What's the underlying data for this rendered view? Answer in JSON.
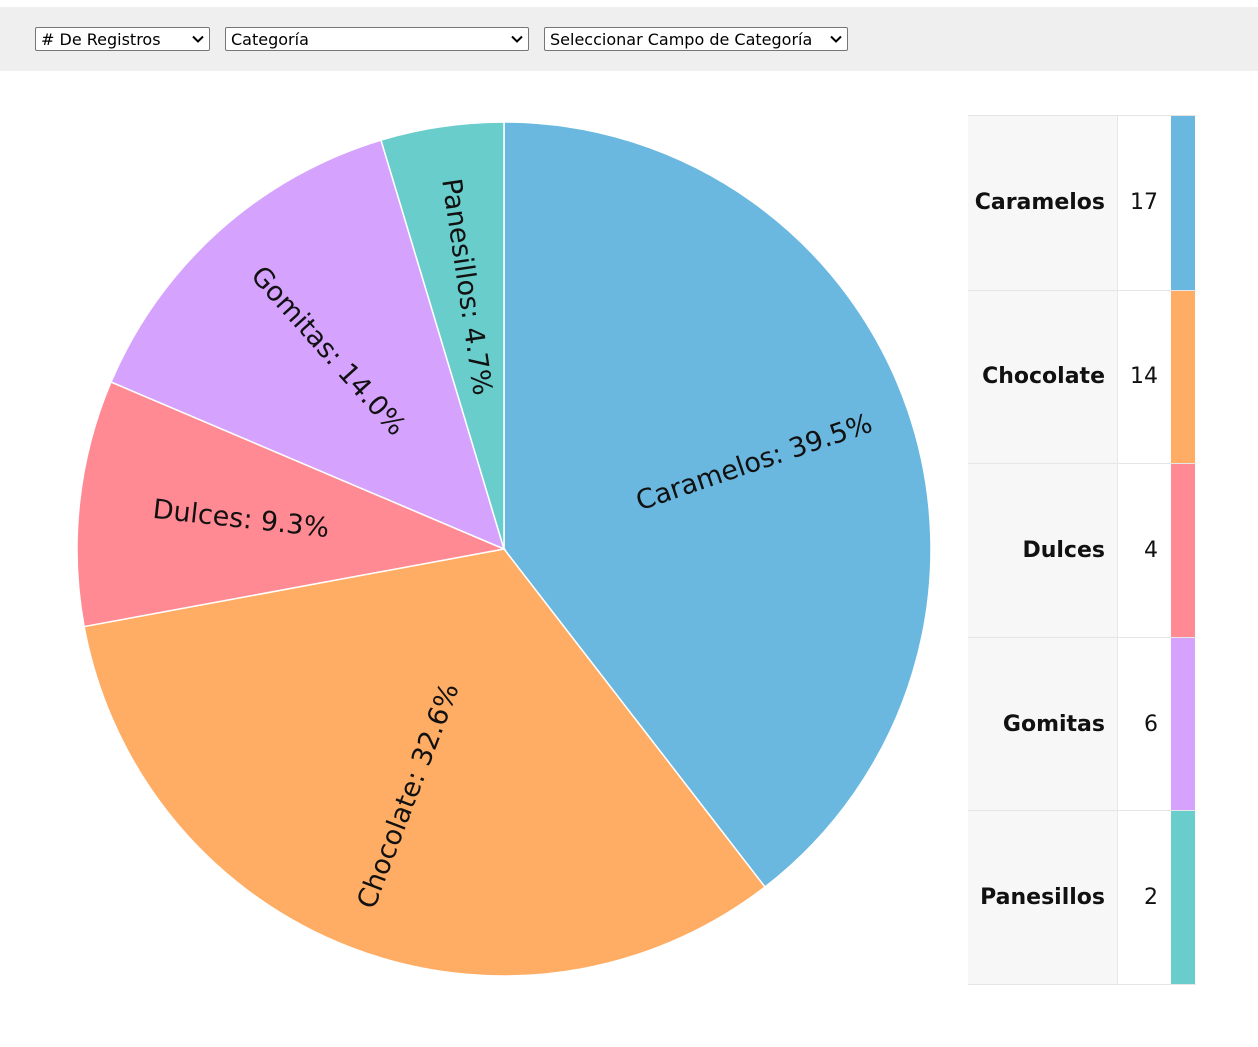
{
  "toolbar": {
    "measure_select": {
      "value": "# De Registros"
    },
    "category_select": {
      "value": "Categoría"
    },
    "field_select": {
      "value": "Seleccionar Campo de Categoría"
    }
  },
  "chart_data": {
    "type": "pie",
    "title": "",
    "categories": [
      "Caramelos",
      "Chocolate",
      "Dulces",
      "Gomitas",
      "Panesillos"
    ],
    "values": [
      17,
      14,
      4,
      6,
      2
    ],
    "percent_labels": [
      "Caramelos: 39.5%",
      "Chocolate: 32.6%",
      "Dulces: 9.3%",
      "Gomitas: 14.0%",
      "Panesillos: 4.7%"
    ],
    "colors": [
      "#6ab7df",
      "#ffad64",
      "#ff8a93",
      "#d5a2fd",
      "#69cdcc"
    ],
    "legend_placement": "right"
  }
}
